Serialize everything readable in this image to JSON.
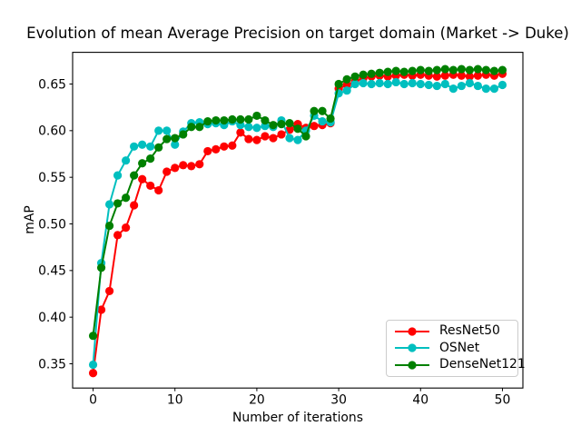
{
  "figure": {
    "title": "Evolution of mean Average Precision on target domain (Market -> Duke)",
    "background_color": "#ffffff",
    "text_color": "#000000"
  },
  "chart_data": {
    "type": "line",
    "title": "Evolution of mean Average Precision on target domain (Market -> Duke)",
    "xlabel": "Number of iterations",
    "ylabel": "mAP",
    "grid": false,
    "legend_position": "lower right",
    "marker": "o",
    "xlim": [
      -2.5,
      52.5
    ],
    "ylim": [
      0.324,
      0.684
    ],
    "xticks": [
      0,
      10,
      20,
      30,
      40,
      50
    ],
    "xtick_labels": [
      "0",
      "10",
      "20",
      "30",
      "40",
      "50"
    ],
    "yticks": [
      0.35,
      0.4,
      0.45,
      0.5,
      0.55,
      0.6,
      0.65
    ],
    "ytick_labels": [
      "0.35",
      "0.40",
      "0.45",
      "0.50",
      "0.55",
      "0.60",
      "0.65"
    ],
    "x": [
      0,
      1,
      2,
      3,
      4,
      5,
      6,
      7,
      8,
      9,
      10,
      11,
      12,
      13,
      14,
      15,
      16,
      17,
      18,
      19,
      20,
      21,
      22,
      23,
      24,
      25,
      26,
      27,
      28,
      29,
      30,
      31,
      32,
      33,
      34,
      35,
      36,
      37,
      38,
      39,
      40,
      41,
      42,
      43,
      44,
      45,
      46,
      47,
      48,
      49,
      50
    ],
    "series": [
      {
        "name": "ResNet50",
        "color": "#ff0000",
        "values": [
          0.34,
          0.408,
          0.428,
          0.488,
          0.496,
          0.52,
          0.548,
          0.541,
          0.536,
          0.556,
          0.56,
          0.563,
          0.562,
          0.564,
          0.578,
          0.58,
          0.583,
          0.584,
          0.598,
          0.591,
          0.59,
          0.594,
          0.592,
          0.596,
          0.601,
          0.607,
          0.603,
          0.605,
          0.606,
          0.608,
          0.645,
          0.649,
          0.653,
          0.656,
          0.658,
          0.659,
          0.658,
          0.659,
          0.66,
          0.659,
          0.66,
          0.659,
          0.658,
          0.659,
          0.66,
          0.659,
          0.658,
          0.659,
          0.66,
          0.659,
          0.661
        ]
      },
      {
        "name": "OSNet",
        "color": "#00bfbf",
        "values": [
          0.349,
          0.458,
          0.521,
          0.552,
          0.568,
          0.583,
          0.585,
          0.583,
          0.6,
          0.6,
          0.585,
          0.599,
          0.608,
          0.609,
          0.607,
          0.608,
          0.606,
          0.61,
          0.606,
          0.604,
          0.603,
          0.605,
          0.604,
          0.611,
          0.592,
          0.59,
          0.6,
          0.616,
          0.61,
          0.609,
          0.64,
          0.643,
          0.65,
          0.651,
          0.65,
          0.651,
          0.65,
          0.652,
          0.65,
          0.651,
          0.65,
          0.649,
          0.648,
          0.65,
          0.645,
          0.648,
          0.651,
          0.648,
          0.645,
          0.645,
          0.649
        ]
      },
      {
        "name": "DenseNet121",
        "color": "#008000",
        "values": [
          0.38,
          0.453,
          0.498,
          0.522,
          0.528,
          0.552,
          0.565,
          0.57,
          0.582,
          0.591,
          0.592,
          0.596,
          0.604,
          0.604,
          0.61,
          0.611,
          0.611,
          0.612,
          0.612,
          0.612,
          0.616,
          0.611,
          0.606,
          0.607,
          0.608,
          0.602,
          0.594,
          0.621,
          0.621,
          0.613,
          0.65,
          0.655,
          0.658,
          0.66,
          0.661,
          0.662,
          0.663,
          0.664,
          0.663,
          0.664,
          0.665,
          0.664,
          0.665,
          0.666,
          0.665,
          0.666,
          0.665,
          0.666,
          0.665,
          0.664,
          0.665
        ]
      }
    ],
    "axes_style": {
      "spine_color": "#000000",
      "tick_length": 3.5,
      "line_width": 2,
      "marker_radius": 4.6
    }
  }
}
